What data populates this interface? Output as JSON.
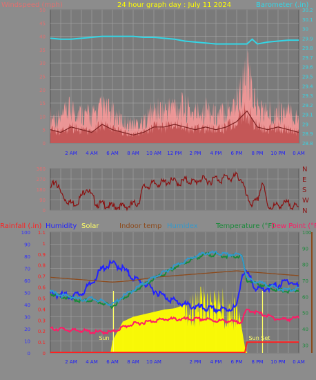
{
  "colors": {
    "background": "#8c8c8c",
    "plot_bg": "#7a7a7a",
    "grid": "#a6a6a6",
    "wind_label": "#e07070",
    "title": "#ffff00",
    "baro": "#33d6e6",
    "rain": "#ff2020",
    "humidity": "#2222ff",
    "solar": "#ffff00",
    "indoor": "#8c4a1c",
    "humidex": "#3399cc",
    "temperature": "#1a8a3a",
    "dewpoint": "#ff1a66",
    "wind_fill": "#f08080",
    "gust": "#ff9a9a",
    "dir_line": "#8b1010"
  },
  "chart_data": [
    {
      "type": "area",
      "title": "24 hour graph day : July 11 2024",
      "ylabel": "Windspeed (mph)",
      "y2label": "Barometer (.in)",
      "ylim": [
        0,
        50
      ],
      "y2lim": [
        28.8,
        30.2
      ],
      "yticks": [
        "0",
        "5",
        "10",
        "15",
        "20",
        "25",
        "30",
        "35",
        "40",
        "45",
        "50"
      ],
      "y2ticks": [
        "28.8",
        "28.9",
        "29",
        "29.1",
        "29.2",
        "29.3",
        "29.4",
        "29.5",
        "29.6",
        "29.7",
        "29.8",
        "29.9",
        "30",
        "30.1",
        "30.2"
      ],
      "xticks": [
        "2 AM",
        "4 AM",
        "6 AM",
        "8 AM",
        "10 AM",
        "12 PM",
        "2 PM",
        "4 PM",
        "6 PM",
        "8 PM",
        "10 PM",
        "0 AM"
      ],
      "grid": true,
      "series": [
        {
          "name": "Barometer",
          "x": [
            0,
            1,
            2,
            3,
            4,
            5,
            6,
            7,
            8,
            9,
            10,
            11,
            12,
            13,
            14,
            15,
            16,
            17,
            18,
            19,
            19.5,
            20,
            21,
            22,
            23,
            24
          ],
          "values": [
            29.9,
            29.89,
            29.89,
            29.9,
            29.91,
            29.92,
            29.92,
            29.92,
            29.92,
            29.91,
            29.91,
            29.9,
            29.89,
            29.87,
            29.86,
            29.85,
            29.84,
            29.84,
            29.84,
            29.84,
            29.89,
            29.84,
            29.86,
            29.87,
            29.88,
            29.88
          ]
        },
        {
          "name": "Windspeed",
          "x": [
            0,
            1,
            2,
            3,
            4,
            5,
            6,
            7,
            8,
            9,
            10,
            11,
            12,
            13,
            14,
            15,
            16,
            17,
            18,
            19,
            20,
            21,
            22,
            23,
            24
          ],
          "values": [
            5,
            4,
            6,
            5,
            4,
            7,
            5,
            4,
            3,
            4,
            6,
            6,
            7,
            6,
            5,
            6,
            5,
            6,
            8,
            12,
            6,
            5,
            6,
            5,
            4
          ]
        },
        {
          "name": "Gust",
          "x": [
            0,
            1,
            2,
            3,
            4,
            5,
            6,
            7,
            8,
            9,
            10,
            11,
            12,
            13,
            14,
            15,
            16,
            17,
            18,
            19,
            20,
            21,
            22,
            23,
            24
          ],
          "values": [
            10,
            9,
            13,
            11,
            10,
            13,
            11,
            8,
            7,
            8,
            12,
            12,
            14,
            13,
            11,
            13,
            10,
            12,
            16,
            25,
            13,
            11,
            12,
            11,
            9
          ]
        }
      ]
    },
    {
      "type": "scatter",
      "title": "",
      "ylabel": "",
      "ylim": [
        0,
        360
      ],
      "yticks": [
        "0",
        "90",
        "180",
        "270",
        "360"
      ],
      "y2ticks": [
        "N",
        "W",
        "S",
        "E",
        "N"
      ],
      "grid": true,
      "series": [
        {
          "name": "Wind direction",
          "x": [
            0,
            0.5,
            1,
            1.5,
            2,
            2.5,
            3,
            3.5,
            4,
            4.5,
            5,
            5.5,
            6,
            6.5,
            7,
            7.5,
            8,
            8.5,
            9,
            9.5,
            10,
            10.5,
            11,
            11.5,
            12,
            12.5,
            13,
            13.5,
            14,
            14.5,
            15,
            15.5,
            16,
            16.5,
            17,
            17.5,
            18,
            18.5,
            19,
            19.5,
            20,
            20.5,
            21,
            21.5,
            22,
            22.5,
            23,
            23.5,
            24
          ],
          "values": [
            180,
            260,
            150,
            90,
            60,
            60,
            120,
            200,
            120,
            50,
            50,
            40,
            30,
            30,
            30,
            30,
            50,
            60,
            200,
            210,
            230,
            230,
            240,
            250,
            250,
            230,
            260,
            250,
            240,
            270,
            260,
            250,
            280,
            260,
            290,
            270,
            300,
            260,
            100,
            50,
            80,
            250,
            30,
            30,
            40,
            50,
            60,
            30,
            20
          ]
        }
      ]
    },
    {
      "type": "line",
      "title": "",
      "legend": [
        "Rainfall (.in)",
        "Humidity",
        "Solar",
        "Indoor temp",
        "Humidex",
        "Temperature (°F)",
        "Dew Point (°F)"
      ],
      "ylabel": "",
      "ylim_humidity": [
        0,
        100
      ],
      "ylim_rain": [
        0,
        1.1
      ],
      "ylim_temp": [
        25,
        100
      ],
      "y_humidity_ticks": [
        "0",
        "10",
        "20",
        "30",
        "40",
        "50",
        "60",
        "70",
        "80",
        "90",
        "100"
      ],
      "y_rain_ticks": [
        "0",
        "0.1",
        "0.2",
        "0.3",
        "0.4",
        "0.5",
        "0.6",
        "0.7",
        "0.8",
        "0.9",
        "1",
        "1.1"
      ],
      "y_temp_ticks": [
        "30",
        "40",
        "50",
        "60",
        "70",
        "80",
        "90",
        "100"
      ],
      "xticks": [
        "2 AM",
        "4 AM",
        "6 AM",
        "8 AM",
        "10 AM",
        "2 PM",
        "4 PM",
        "6 PM",
        "8 PM",
        "10 PM",
        "0 AM"
      ],
      "annotations": [
        "Sun",
        "Sun Set"
      ],
      "grid": true,
      "series": [
        {
          "name": "Humidity",
          "x": [
            0,
            1,
            2,
            3,
            4,
            5,
            6,
            7,
            8,
            9,
            10,
            11,
            12,
            13,
            14,
            15,
            16,
            17,
            18,
            18.5,
            19,
            20,
            21,
            22,
            23,
            24
          ],
          "values": [
            49,
            48,
            47,
            49,
            58,
            70,
            74,
            70,
            62,
            58,
            52,
            47,
            43,
            40,
            38,
            37,
            36,
            36,
            38,
            65,
            66,
            52,
            54,
            56,
            60,
            55
          ]
        },
        {
          "name": "Temperature",
          "x": [
            0,
            1,
            2,
            3,
            4,
            5,
            6,
            7,
            8,
            9,
            10,
            11,
            12,
            13,
            14,
            15,
            16,
            17,
            18,
            18.5,
            19,
            20,
            21,
            22,
            23,
            24
          ],
          "values": [
            62,
            60,
            59,
            57,
            58,
            56,
            54,
            59,
            63,
            67,
            71,
            74,
            78,
            81,
            84,
            86,
            86,
            85,
            85,
            85,
            70,
            68,
            66,
            64,
            63,
            64
          ]
        },
        {
          "name": "Dew Point",
          "x": [
            0,
            1,
            2,
            3,
            4,
            5,
            6,
            7,
            8,
            9,
            10,
            11,
            12,
            13,
            14,
            15,
            16,
            17,
            18,
            18.5,
            19,
            20,
            21,
            22,
            23,
            24
          ],
          "values": [
            40,
            40,
            39,
            39,
            38,
            38,
            38,
            41,
            43,
            44,
            45,
            46,
            46,
            46,
            46,
            46,
            45,
            45,
            44,
            45,
            52,
            50,
            48,
            46,
            46,
            47
          ]
        },
        {
          "name": "Indoor temp",
          "x": [
            0,
            2,
            4,
            6,
            8,
            10,
            12,
            14,
            16,
            18,
            20,
            22,
            24
          ],
          "values": [
            72,
            71,
            70,
            69,
            70,
            72,
            73,
            74,
            75,
            76,
            75,
            74,
            73
          ]
        },
        {
          "name": "Humidex",
          "x": [
            0,
            1,
            2,
            3,
            4,
            5,
            6,
            7,
            8,
            9,
            10,
            11,
            12,
            13,
            14,
            15,
            16,
            17,
            18,
            18.5,
            19,
            20,
            21,
            22,
            23,
            24
          ],
          "values": [
            63,
            61,
            60,
            58,
            59,
            57,
            55,
            60,
            64,
            68,
            72,
            75,
            79,
            82,
            85,
            87,
            87,
            86,
            86,
            86,
            71,
            69,
            67,
            65,
            64,
            65
          ]
        },
        {
          "name": "Solar",
          "x": [
            0,
            5.8,
            6,
            7,
            8,
            9,
            10,
            11,
            12,
            13,
            14,
            15,
            16,
            17,
            18,
            18.3,
            18.8,
            19,
            24
          ],
          "values": [
            0,
            0,
            10,
            26,
            30,
            32,
            34,
            36,
            37,
            40,
            42,
            44,
            44,
            42,
            40,
            30,
            5,
            0,
            0
          ]
        },
        {
          "name": "Rainfall",
          "x": [
            0,
            18.8,
            19,
            24
          ],
          "values": [
            0,
            0,
            0.1,
            0.1
          ]
        }
      ]
    }
  ]
}
